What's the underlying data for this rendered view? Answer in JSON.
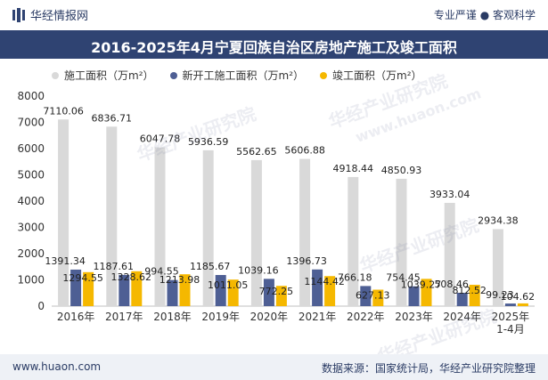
{
  "header": {
    "brand": "华经情报网",
    "tagline": "专业严谨 ● 客观科学"
  },
  "footer": {
    "website": "www.huaon.com",
    "source": "数据来源：国家统计局，华经产业研究院整理"
  },
  "watermarks": [
    "华经产业研究院",
    "www.huaon.com"
  ],
  "chart_data": {
    "type": "bar",
    "title": "2016-2025年4月宁夏回族自治区房地产施工及竣工面积",
    "xlabel": "",
    "ylabel": "",
    "ylim": [
      0,
      8000
    ],
    "yticks": [
      "0",
      "1000",
      "2000",
      "3000",
      "4000",
      "5000",
      "6000",
      "7000",
      "8000"
    ],
    "grid": false,
    "legend_position": "top",
    "categories": [
      "2016年",
      "2017年",
      "2018年",
      "2019年",
      "2020年",
      "2021年",
      "2022年",
      "2023年",
      "2024年",
      "2025年\n1-4月"
    ],
    "series": [
      {
        "name": "施工面积（万m²）",
        "color": "#d9d9d9",
        "values": [
          7110.06,
          6836.71,
          6047.78,
          5936.59,
          5562.65,
          5606.88,
          4918.44,
          4850.93,
          3933.04,
          2934.38
        ],
        "labels": [
          "7110.06",
          "6836.71",
          "6047.78",
          "5936.59",
          "5562.65",
          "5606.88",
          "4918.44",
          "4850.93",
          "3933.04",
          "2934.38"
        ]
      },
      {
        "name": "新开工施工面积（万m²）",
        "color": "#4e5f94",
        "values": [
          1391.34,
          1187.61,
          994.55,
          1185.67,
          1039.16,
          1396.73,
          766.18,
          754.45,
          508.46,
          99.23
        ],
        "labels": [
          "1391.34",
          "1187.61",
          "994.55",
          "1185.67",
          "1039.16",
          "1396.73",
          "766.18",
          "754.45",
          "508.46",
          "99.23"
        ]
      },
      {
        "name": "竣工面积（万m²）",
        "color": "#f5b800",
        "values": [
          1294.55,
          1328.62,
          1213.98,
          1011.05,
          772.25,
          1144.42,
          627.13,
          1039.27,
          812.52,
          104.62
        ],
        "labels": [
          "1294.55",
          "1328.62",
          "1213.98",
          "1011.05",
          "772.25",
          "1144.42",
          "627.13",
          "1039.27",
          "812.52",
          "104.62"
        ]
      }
    ]
  }
}
